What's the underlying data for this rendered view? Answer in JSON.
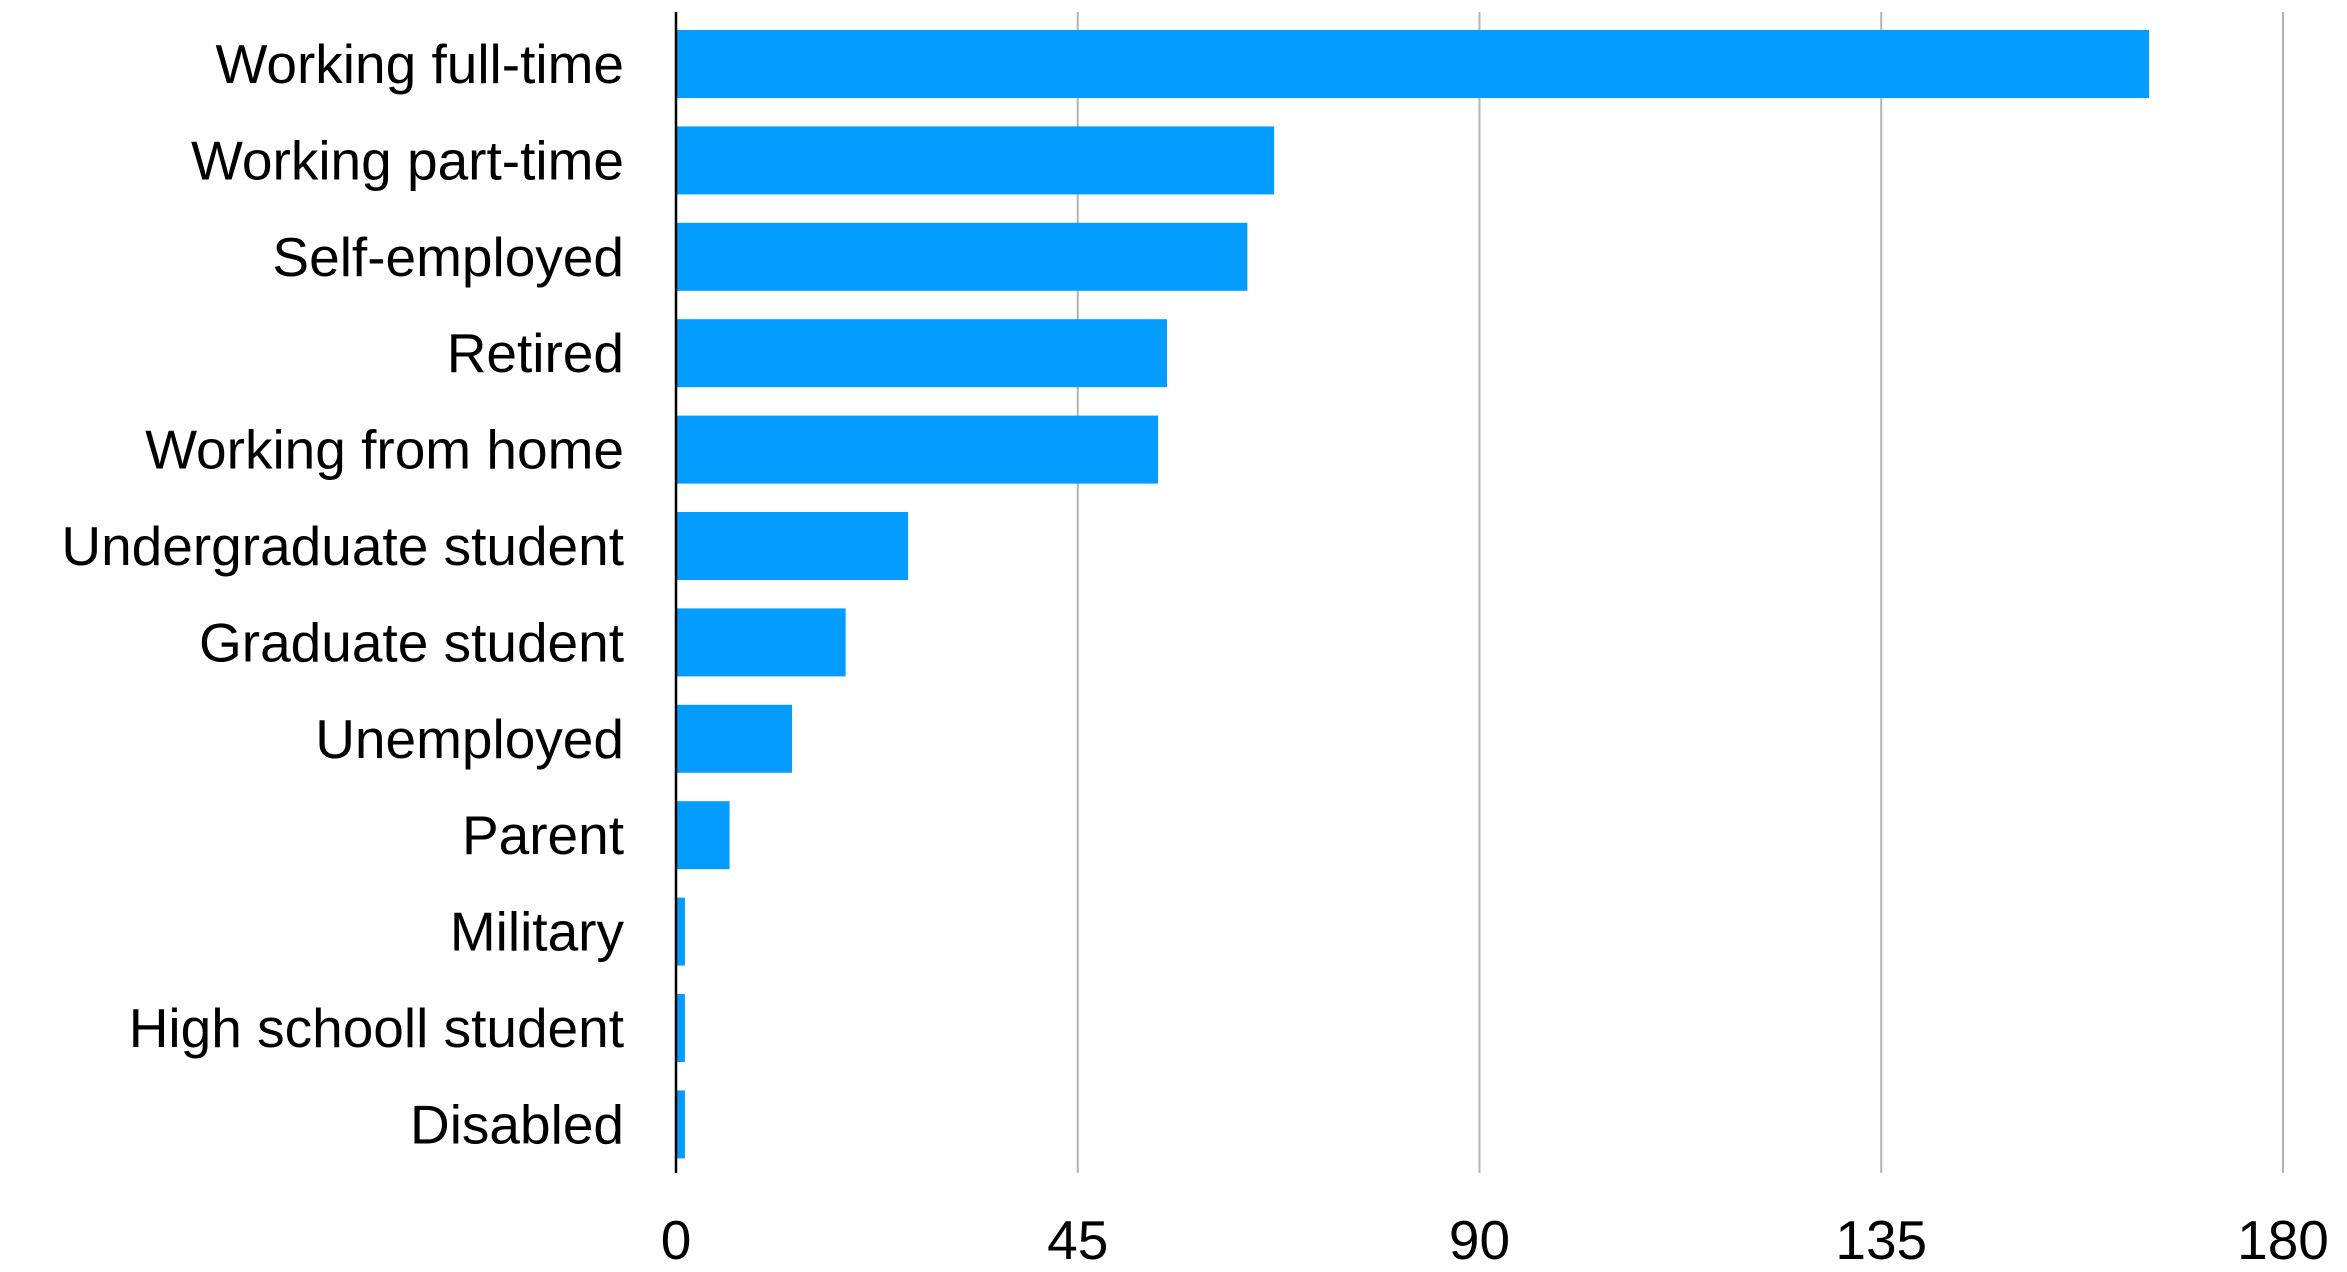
{
  "chart_data": {
    "type": "bar",
    "orientation": "horizontal",
    "title": "",
    "xlabel": "",
    "ylabel": "",
    "categories": [
      "Working full-time",
      "Working part-time",
      "Self-employed",
      "Retired",
      "Working from home",
      "Undergraduate student",
      "Graduate student",
      "Unemployed",
      "Parent",
      "Military",
      "High schooll student",
      "Disabled"
    ],
    "values": [
      165,
      67,
      64,
      55,
      54,
      26,
      19,
      13,
      6,
      1,
      1,
      1
    ],
    "xlim": [
      0,
      180
    ],
    "xticks": [
      "0",
      "45",
      "90",
      "135",
      "180"
    ],
    "grid": "vertical",
    "legend": "none",
    "bar_color": "#049CFF",
    "grid_color": "#B3B3B3"
  }
}
